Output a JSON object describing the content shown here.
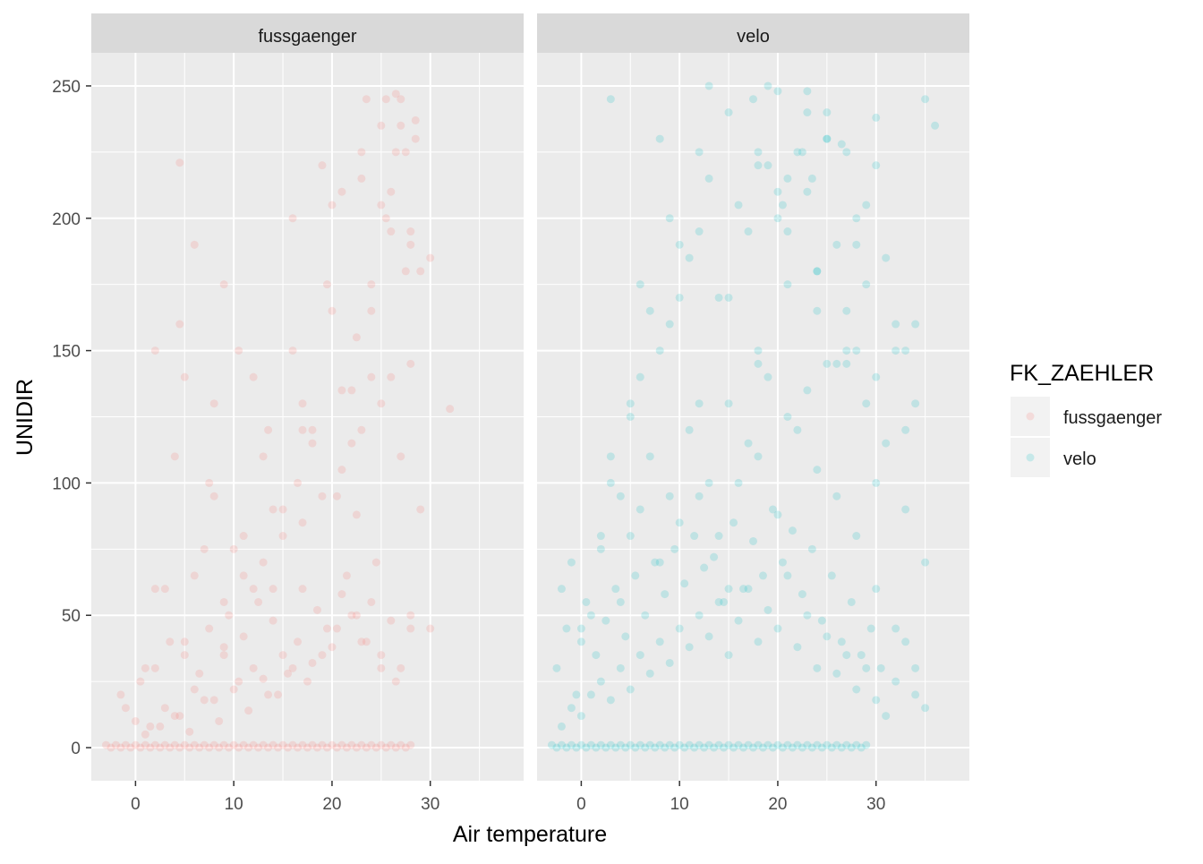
{
  "chart_data": {
    "type": "scatter",
    "facet_variable": "FK_ZAEHLER",
    "facets": [
      "fussgaenger",
      "velo"
    ],
    "xlabel": "Air temperature",
    "ylabel": "UNIDIR",
    "xlim": [
      -4.5,
      39.5
    ],
    "ylim": [
      -12.5,
      262.5
    ],
    "x_ticks": [
      0,
      10,
      20,
      30
    ],
    "x_minor_ticks": [
      -5,
      5,
      15,
      25,
      35
    ],
    "y_ticks": [
      0,
      50,
      100,
      150,
      200,
      250
    ],
    "y_minor_ticks": [
      25,
      75,
      125,
      175,
      225
    ],
    "grid": true,
    "point_alpha": 0.1,
    "legend": {
      "title": "FK_ZAEHLER",
      "position": "right",
      "entries": [
        {
          "label": "fussgaenger",
          "color": "#F8766D"
        },
        {
          "label": "velo",
          "color": "#00BFC4"
        }
      ]
    },
    "series": [
      {
        "name": "fussgaenger",
        "color": "#F8766D",
        "x": [
          -3.0,
          -2.5,
          -2,
          -1.5,
          -1,
          -0.5,
          0,
          0.5,
          1,
          1.5,
          2,
          2.5,
          3,
          3.5,
          4,
          4.5,
          5,
          5.5,
          6,
          6.5,
          7,
          7.5,
          8,
          8.5,
          9,
          9.5,
          10,
          10.5,
          11,
          11.5,
          12,
          12.5,
          13,
          13.5,
          14,
          14.5,
          15,
          15.5,
          16,
          16.5,
          17,
          17.5,
          18,
          18.5,
          19,
          19.5,
          20,
          20.5,
          21,
          21.5,
          22,
          22.5,
          23,
          23.5,
          24,
          24.5,
          25,
          25.5,
          26,
          26.5,
          27,
          27.5,
          28,
          -1.5,
          0,
          0.5,
          1.5,
          2,
          3,
          3.5,
          4.5,
          5,
          6,
          6.5,
          7.5,
          8,
          9,
          9.5,
          10.5,
          11,
          12,
          12.5,
          13.5,
          14,
          15,
          15.5,
          16.5,
          17,
          18,
          18.5,
          19.5,
          20,
          21,
          21.5,
          22.5,
          23,
          24,
          25,
          26,
          27,
          28,
          -1,
          1,
          2.5,
          4,
          5.5,
          7,
          8.5,
          10,
          11.5,
          13,
          14.5,
          16,
          17.5,
          19,
          20.5,
          22,
          23.5,
          25,
          26.5,
          28,
          30,
          1,
          3,
          5,
          7,
          9,
          11,
          13,
          15,
          17,
          19,
          21,
          23,
          25,
          27,
          29,
          2,
          4,
          6,
          8,
          10,
          12,
          14,
          16,
          18,
          20,
          22,
          24,
          26,
          28,
          4.5,
          7.5,
          10.5,
          13.5,
          16.5,
          19.5,
          22.5,
          25.5,
          27.5,
          6,
          9,
          12,
          15,
          18,
          21,
          24,
          26,
          28.5,
          30,
          5,
          8,
          11,
          14,
          17,
          20,
          23,
          25.5,
          27,
          2,
          13,
          16,
          19,
          22,
          24.5,
          26.5,
          28,
          21,
          23,
          25,
          27,
          29,
          32,
          4.5,
          9,
          17,
          20.5,
          22.5,
          24,
          26,
          27.5,
          28.5,
          23.5,
          25,
          26.5,
          28
        ],
        "y": [
          1,
          0,
          1,
          0,
          1,
          0,
          1,
          0,
          1,
          0,
          1,
          0,
          1,
          0,
          1,
          0,
          1,
          0,
          1,
          0,
          1,
          0,
          1,
          0,
          1,
          0,
          1,
          0,
          1,
          0,
          1,
          0,
          1,
          0,
          1,
          0,
          1,
          0,
          1,
          0,
          1,
          0,
          1,
          0,
          1,
          0,
          1,
          0,
          1,
          0,
          1,
          0,
          1,
          0,
          1,
          0,
          1,
          0,
          1,
          0,
          1,
          0,
          1,
          20,
          10,
          25,
          8,
          30,
          15,
          40,
          12,
          35,
          22,
          28,
          45,
          18,
          38,
          50,
          25,
          42,
          30,
          55,
          20,
          48,
          35,
          28,
          40,
          60,
          32,
          52,
          45,
          38,
          58,
          65,
          50,
          40,
          55,
          35,
          48,
          30,
          45,
          15,
          5,
          8,
          12,
          6,
          18,
          10,
          22,
          14,
          26,
          20,
          30,
          25,
          35,
          45,
          50,
          40,
          30,
          25,
          50,
          45,
          30,
          60,
          40,
          75,
          55,
          65,
          70,
          80,
          85,
          95,
          105,
          120,
          130,
          110,
          90,
          60,
          110,
          65,
          130,
          75,
          140,
          90,
          150,
          115,
          165,
          135,
          175,
          140,
          190,
          160,
          100,
          150,
          120,
          100,
          175,
          155,
          200,
          180,
          190,
          35,
          60,
          90,
          120,
          135,
          165,
          210,
          230,
          185,
          140,
          95,
          80,
          60,
          130,
          205,
          215,
          245,
          235,
          150,
          110,
          200,
          220,
          115,
          70,
          225,
          145,
          210,
          225,
          235,
          245,
          180,
          128,
          221,
          175,
          120,
          95,
          88,
          140,
          195,
          225,
          237,
          245,
          205,
          247,
          195
        ]
      },
      {
        "name": "velo",
        "color": "#00BFC4",
        "x": [
          -3.0,
          -2.5,
          -2,
          -1.5,
          -1,
          -0.5,
          0,
          0.5,
          1,
          1.5,
          2,
          2.5,
          3,
          3.5,
          4,
          4.5,
          5,
          5.5,
          6,
          6.5,
          7,
          7.5,
          8,
          8.5,
          9,
          9.5,
          10,
          10.5,
          11,
          11.5,
          12,
          12.5,
          13,
          13.5,
          14,
          14.5,
          15,
          15.5,
          16,
          16.5,
          17,
          17.5,
          18,
          18.5,
          19,
          19.5,
          20,
          20.5,
          21,
          21.5,
          22,
          22.5,
          23,
          23.5,
          24,
          24.5,
          25,
          25.5,
          26,
          26.5,
          27,
          27.5,
          28,
          28.5,
          29,
          -2,
          -1,
          0,
          1,
          2,
          3,
          4,
          5,
          6,
          7,
          8,
          9,
          10,
          11,
          12,
          13,
          14,
          15,
          16,
          17,
          18,
          19,
          20,
          21,
          22,
          23,
          24,
          25,
          26,
          27,
          28,
          29,
          30,
          31,
          -2.5,
          -1.5,
          -0.5,
          0.5,
          1.5,
          2.5,
          3.5,
          4.5,
          5.5,
          6.5,
          7.5,
          8.5,
          9.5,
          10.5,
          11.5,
          12.5,
          13.5,
          14.5,
          15.5,
          16.5,
          17.5,
          18.5,
          19.5,
          20.5,
          21.5,
          22.5,
          23.5,
          24.5,
          25.5,
          26.5,
          27.5,
          28.5,
          29.5,
          30.5,
          32,
          33,
          34,
          35,
          -2,
          0,
          2,
          4,
          6,
          8,
          10,
          12,
          14,
          16,
          18,
          20,
          22,
          24,
          26,
          28,
          30,
          32,
          34,
          -1,
          1,
          3,
          5,
          7,
          9,
          11,
          13,
          15,
          17,
          19,
          21,
          23,
          25,
          27,
          29,
          31,
          33,
          35,
          0,
          3,
          6,
          9,
          12,
          15,
          18,
          21,
          24,
          27,
          30,
          33,
          2,
          5,
          8,
          11,
          14,
          17,
          20,
          23,
          26,
          29,
          32,
          4,
          7,
          10,
          13,
          16,
          19,
          22,
          25,
          28,
          31,
          34,
          6,
          9,
          12,
          15,
          18,
          21,
          24,
          27,
          30,
          36,
          3,
          8,
          13,
          18,
          23,
          28,
          33,
          5,
          10,
          15,
          20,
          25,
          30,
          35,
          19,
          21,
          22.5,
          24,
          26,
          28,
          30,
          18,
          20,
          23,
          25,
          27,
          29,
          32,
          34,
          12,
          17.5,
          20.5,
          23.5,
          26.5
        ],
        "y": [
          1,
          0,
          1,
          0,
          1,
          0,
          1,
          0,
          1,
          0,
          1,
          0,
          1,
          0,
          1,
          0,
          1,
          0,
          1,
          0,
          1,
          0,
          1,
          0,
          1,
          0,
          1,
          0,
          1,
          0,
          1,
          0,
          1,
          0,
          1,
          0,
          1,
          0,
          1,
          0,
          1,
          0,
          1,
          0,
          1,
          0,
          1,
          0,
          1,
          0,
          1,
          0,
          1,
          0,
          1,
          0,
          1,
          0,
          1,
          0,
          1,
          0,
          1,
          0,
          1,
          8,
          15,
          12,
          20,
          25,
          18,
          30,
          22,
          35,
          28,
          40,
          32,
          45,
          38,
          50,
          42,
          55,
          35,
          48,
          60,
          40,
          52,
          45,
          65,
          38,
          50,
          30,
          42,
          28,
          35,
          22,
          30,
          18,
          12,
          30,
          45,
          20,
          55,
          35,
          48,
          60,
          42,
          65,
          50,
          70,
          58,
          75,
          62,
          80,
          68,
          72,
          55,
          85,
          60,
          78,
          65,
          90,
          70,
          82,
          58,
          75,
          48,
          65,
          40,
          55,
          35,
          45,
          30,
          25,
          40,
          20,
          15,
          60,
          40,
          75,
          55,
          90,
          70,
          85,
          95,
          80,
          100,
          110,
          88,
          120,
          105,
          95,
          80,
          60,
          45,
          30,
          70,
          50,
          100,
          80,
          110,
          95,
          120,
          100,
          130,
          115,
          140,
          125,
          135,
          145,
          150,
          130,
          115,
          90,
          70,
          45,
          110,
          140,
          160,
          130,
          170,
          150,
          175,
          180,
          165,
          140,
          120,
          80,
          130,
          150,
          185,
          170,
          195,
          200,
          210,
          190,
          175,
          150,
          95,
          165,
          190,
          215,
          205,
          220,
          225,
          230,
          200,
          185,
          160,
          175,
          200,
          225,
          240,
          225,
          195,
          180,
          145,
          220,
          235,
          245,
          230,
          250,
          220,
          240,
          190,
          150,
          125,
          170,
          60,
          248,
          230,
          238,
          245,
          250,
          215,
          225,
          165,
          145,
          150,
          100,
          145,
          210,
          248,
          240,
          225,
          205,
          160,
          130,
          195,
          245,
          205,
          215,
          228
        ]
      }
    ]
  }
}
